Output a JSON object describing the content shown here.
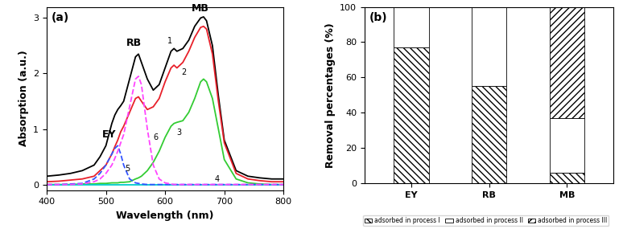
{
  "chart_data": [
    {
      "type": "line",
      "title": "(a)",
      "x_label": "Wavelength (nm)",
      "y_label": "Absorption (a.u.)",
      "annotations": [
        "EY",
        "RB",
        "MB"
      ],
      "x": [
        400,
        420,
        440,
        460,
        480,
        490,
        500,
        510,
        515,
        520,
        525,
        530,
        540,
        550,
        555,
        560,
        570,
        580,
        590,
        600,
        610,
        615,
        620,
        630,
        640,
        650,
        660,
        665,
        670,
        680,
        690,
        700,
        720,
        740,
        760,
        780,
        800
      ],
      "xlim": [
        400,
        800
      ],
      "xticks": [
        400,
        500,
        600,
        700,
        800
      ],
      "ylim": [
        -0.1,
        3.2
      ],
      "yticks": [
        0,
        1,
        2,
        3
      ],
      "series": [
        {
          "name": "1",
          "color": "#000000",
          "line_style": "solid",
          "values": [
            0.15,
            0.17,
            0.2,
            0.25,
            0.35,
            0.5,
            0.7,
            1.1,
            1.25,
            1.35,
            1.42,
            1.5,
            1.9,
            2.3,
            2.35,
            2.2,
            1.9,
            1.7,
            1.8,
            2.1,
            2.4,
            2.45,
            2.4,
            2.45,
            2.6,
            2.85,
            3.0,
            3.02,
            2.95,
            2.5,
            1.6,
            0.8,
            0.25,
            0.15,
            0.12,
            0.1,
            0.1
          ]
        },
        {
          "name": "2",
          "color": "#e8202a",
          "line_style": "solid",
          "values": [
            0.05,
            0.06,
            0.08,
            0.1,
            0.15,
            0.25,
            0.35,
            0.55,
            0.68,
            0.8,
            0.95,
            1.05,
            1.3,
            1.55,
            1.58,
            1.5,
            1.35,
            1.4,
            1.55,
            1.85,
            2.1,
            2.15,
            2.1,
            2.2,
            2.4,
            2.65,
            2.83,
            2.85,
            2.8,
            2.35,
            1.5,
            0.75,
            0.2,
            0.1,
            0.07,
            0.05,
            0.05
          ]
        },
        {
          "name": "3",
          "color": "#33cc33",
          "line_style": "solid",
          "values": [
            0.0,
            0.0,
            0.0,
            0.01,
            0.01,
            0.02,
            0.02,
            0.03,
            0.03,
            0.03,
            0.04,
            0.04,
            0.05,
            0.1,
            0.12,
            0.15,
            0.25,
            0.4,
            0.6,
            0.85,
            1.05,
            1.1,
            1.12,
            1.15,
            1.3,
            1.55,
            1.85,
            1.9,
            1.85,
            1.55,
            1.0,
            0.45,
            0.1,
            0.03,
            0.01,
            0.0,
            0.0
          ]
        },
        {
          "name": "4",
          "color": "#00cccc",
          "line_style": "solid",
          "values": [
            0.0,
            0.0,
            0.0,
            0.0,
            0.0,
            0.0,
            0.0,
            0.0,
            0.0,
            0.0,
            0.0,
            0.0,
            0.0,
            0.0,
            0.0,
            0.0,
            0.0,
            0.0,
            0.0,
            0.0,
            0.0,
            0.0,
            0.0,
            0.0,
            0.0,
            0.0,
            0.0,
            0.0,
            0.0,
            0.0,
            0.0,
            0.0,
            0.0,
            0.0,
            0.0,
            0.0,
            0.0
          ]
        },
        {
          "name": "5",
          "color": "#3355ff",
          "line_style": "dashed",
          "values": [
            0.0,
            0.0,
            0.01,
            0.02,
            0.1,
            0.2,
            0.35,
            0.55,
            0.65,
            0.7,
            0.55,
            0.35,
            0.1,
            0.03,
            0.02,
            0.01,
            0.0,
            0.0,
            0.0,
            0.0,
            0.0,
            0.0,
            0.0,
            0.0,
            0.0,
            0.0,
            0.0,
            0.0,
            0.0,
            0.0,
            0.0,
            0.0,
            0.0,
            0.0,
            0.0,
            0.0,
            0.0
          ]
        },
        {
          "name": "6",
          "color": "#ff44ff",
          "line_style": "dashed",
          "values": [
            0.0,
            0.0,
            0.0,
            0.01,
            0.05,
            0.1,
            0.2,
            0.35,
            0.47,
            0.6,
            0.75,
            0.9,
            1.4,
            1.9,
            1.95,
            1.8,
            1.0,
            0.35,
            0.1,
            0.03,
            0.01,
            0.0,
            0.0,
            0.0,
            0.0,
            0.0,
            0.0,
            0.0,
            0.0,
            0.0,
            0.0,
            0.0,
            0.0,
            0.0,
            0.0,
            0.0,
            0.0
          ]
        }
      ]
    },
    {
      "type": "bar",
      "title": "(b)",
      "stacked": true,
      "y_label": "Removal percentages (%)",
      "categories": [
        "EY",
        "RB",
        "MB"
      ],
      "ylim": [
        0,
        100
      ],
      "yticks": [
        0,
        20,
        40,
        60,
        80,
        100
      ],
      "legend": "lower center",
      "series": [
        {
          "name": "adsorbed in process I",
          "color": "#ffffff",
          "values": [
            77,
            55,
            6
          ]
        },
        {
          "name": "adsorbed in process II",
          "color": "#ffffff",
          "values": [
            23,
            45,
            31
          ]
        },
        {
          "name": "adsorbed in process III",
          "color": "#ffffff",
          "values": [
            0,
            0,
            63
          ]
        }
      ]
    }
  ]
}
